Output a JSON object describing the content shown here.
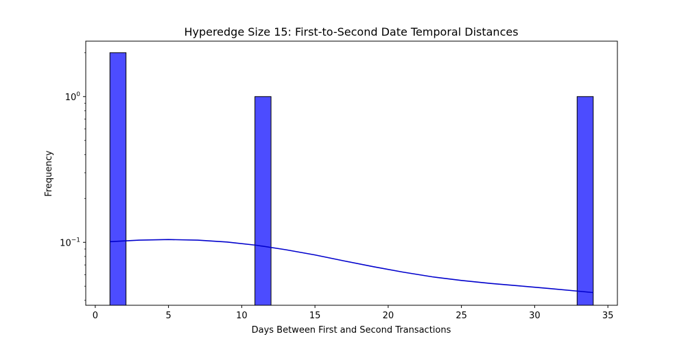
{
  "chart_data": {
    "type": "bar",
    "title": "Hyperedge Size 15: First-to-Second Date Temporal Distances",
    "xlabel": "Days Between First and Second Transactions",
    "ylabel": "Frequency",
    "y_scale": "log",
    "xlim": [
      -0.65,
      35.65
    ],
    "ylim": [
      0.037,
      2.4
    ],
    "x_ticks": [
      0,
      5,
      10,
      15,
      20,
      25,
      30,
      35
    ],
    "x_tick_labels": [
      "0",
      "5",
      "10",
      "15",
      "20",
      "25",
      "30",
      "35"
    ],
    "y_major_ticks": [
      0.1,
      1
    ],
    "y_tick_labels": [
      {
        "base": "10",
        "exp": "−1"
      },
      {
        "base": "10",
        "exp": "0"
      }
    ],
    "y_minor_ticks": [
      0.04,
      0.05,
      0.06,
      0.07,
      0.08,
      0.09,
      0.2,
      0.3,
      0.4,
      0.5,
      0.6,
      0.7,
      0.8,
      0.9,
      2
    ],
    "bars": [
      {
        "x0": 1,
        "x1": 2.1,
        "value": 2
      },
      {
        "x0": 10.9,
        "x1": 12,
        "value": 1
      },
      {
        "x0": 32.9,
        "x1": 34,
        "value": 1
      }
    ],
    "kde_curve": {
      "x": [
        1,
        3,
        5,
        7,
        9,
        11,
        13,
        15,
        17,
        19,
        21,
        23,
        25,
        27,
        29,
        31,
        33,
        34
      ],
      "y": [
        0.101,
        0.1035,
        0.1045,
        0.1035,
        0.1005,
        0.0955,
        0.089,
        0.082,
        0.0745,
        0.068,
        0.0625,
        0.058,
        0.0548,
        0.0522,
        0.0502,
        0.0482,
        0.0462,
        0.0452
      ]
    },
    "grid": false,
    "colors": {
      "bar_fill": "#4c4cff",
      "bar_edge": "#000000",
      "kde_line": "#0000cc",
      "axes": "#000000"
    }
  }
}
